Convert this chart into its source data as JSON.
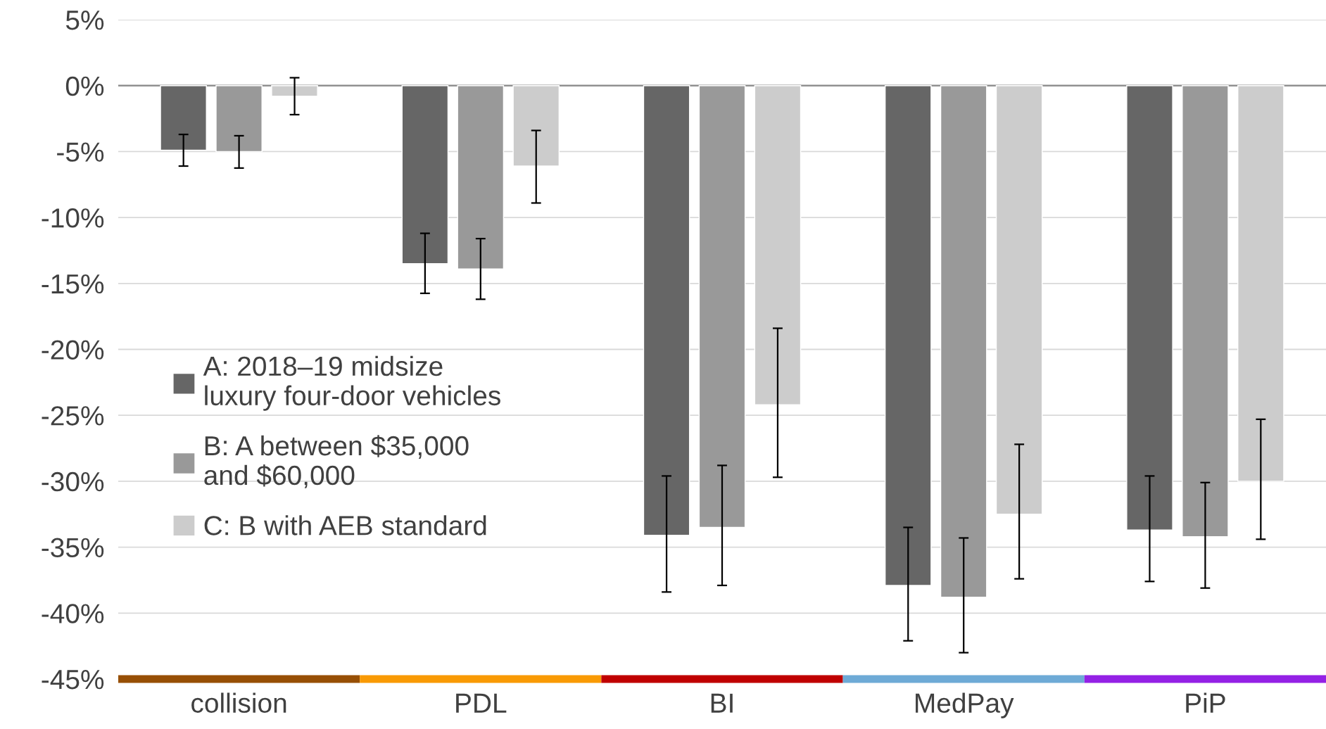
{
  "chart_data": {
    "type": "bar",
    "categories": [
      "collision",
      "PDL",
      "BI",
      "MedPay",
      "PiP"
    ],
    "series": [
      {
        "name": "A: 2018–19 midsize\nluxury four-door vehicles",
        "color": "#666666",
        "values": [
          -4.9,
          -13.5,
          -34.1,
          -37.9,
          -33.7
        ],
        "errors": [
          [
            -6.1,
            -3.7
          ],
          [
            -15.75,
            -11.2
          ],
          [
            -38.4,
            -29.6
          ],
          [
            -42.1,
            -33.5
          ],
          [
            -37.6,
            -29.6
          ]
        ]
      },
      {
        "name": "B: A between $35,000\nand $60,000",
        "color": "#999999",
        "values": [
          -5.0,
          -13.9,
          -33.5,
          -38.8,
          -34.2
        ],
        "errors": [
          [
            -6.25,
            -3.8
          ],
          [
            -16.2,
            -11.6
          ],
          [
            -37.9,
            -28.8
          ],
          [
            -43.0,
            -34.3
          ],
          [
            -38.1,
            -30.1
          ]
        ]
      },
      {
        "name": "C: B with AEB standard",
        "color": "#cccccc",
        "values": [
          -0.8,
          -6.1,
          -24.2,
          -32.5,
          -30.0
        ],
        "errors": [
          [
            -2.2,
            0.6
          ],
          [
            -8.9,
            -3.4
          ],
          [
            -29.7,
            -18.4
          ],
          [
            -37.4,
            -27.2
          ],
          [
            -34.4,
            -25.3
          ]
        ]
      }
    ],
    "ylim": [
      -45,
      5
    ],
    "yticks": [
      {
        "value": 5,
        "label": "5%"
      },
      {
        "value": 0,
        "label": "0%"
      },
      {
        "value": -5,
        "label": "-5%"
      },
      {
        "value": -10,
        "label": "-10%"
      },
      {
        "value": -15,
        "label": "-15%"
      },
      {
        "value": -20,
        "label": "-20%"
      },
      {
        "value": -25,
        "label": "-25%"
      },
      {
        "value": -30,
        "label": "-30%"
      },
      {
        "value": -35,
        "label": "-35%"
      },
      {
        "value": -40,
        "label": "-40%"
      },
      {
        "value": -45,
        "label": "-45%"
      }
    ],
    "ref_lines": [
      {
        "axis": "y",
        "value": 0,
        "color": "#898989"
      }
    ],
    "grid": "y",
    "legend": "left"
  }
}
